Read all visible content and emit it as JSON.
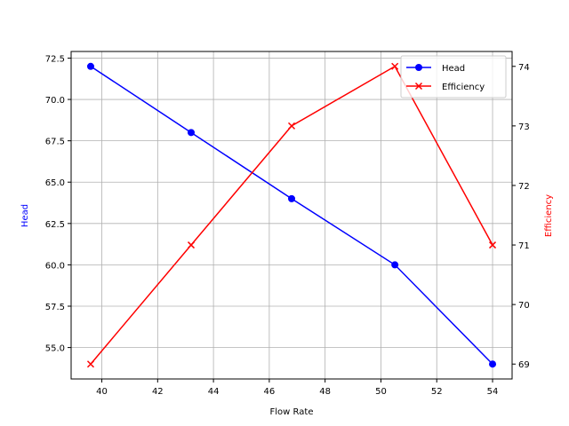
{
  "chart_data": {
    "type": "line",
    "title": "",
    "xlabel": "Flow Rate",
    "ylabel": "Head",
    "ylabel_right": "Efficiency",
    "x": [
      39.6,
      43.2,
      46.8,
      50.5,
      54.0
    ],
    "series": [
      {
        "name": "Head",
        "axis": "left",
        "color": "#0000ff",
        "marker": "circle",
        "values": [
          72,
          68,
          64,
          60,
          54
        ]
      },
      {
        "name": "Efficiency",
        "axis": "right",
        "color": "#ff0000",
        "marker": "x",
        "values": [
          69,
          71,
          73,
          74,
          71
        ]
      }
    ],
    "xticks": [
      "40",
      "42",
      "44",
      "46",
      "48",
      "50",
      "52",
      "54"
    ],
    "yticks_left": [
      "55.0",
      "57.5",
      "60.0",
      "62.5",
      "65.0",
      "67.5",
      "70.0",
      "72.5"
    ],
    "yticks_right": [
      "69",
      "70",
      "71",
      "72",
      "73",
      "74"
    ],
    "xlim": [
      38.9,
      54.7
    ],
    "ylim": [
      53.1,
      72.9
    ],
    "ylim_right": [
      68.75,
      74.25
    ],
    "grid": true,
    "legend_position": "upper right"
  },
  "legend": {
    "items": [
      "Head",
      "Efficiency"
    ]
  }
}
